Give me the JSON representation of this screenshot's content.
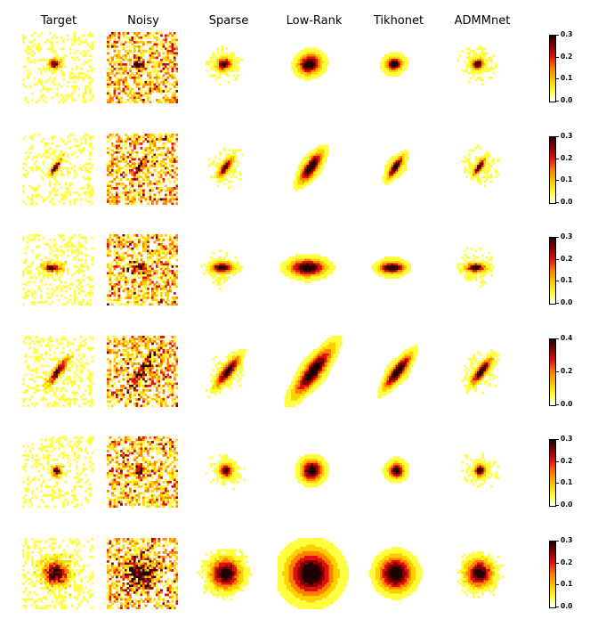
{
  "columns": [
    "Target",
    "Noisy",
    "Sparse",
    "Low-Rank",
    "Tikhonet",
    "ADMMnet"
  ],
  "colormap": {
    "name": "hot-reversed",
    "stops": [
      "#ffffff",
      "#ffff40",
      "#ffd000",
      "#ff8000",
      "#e01010",
      "#800000",
      "#200000"
    ]
  },
  "rows": [
    {
      "colorbar_ticks": [
        "0.0",
        "0.1",
        "0.2",
        "0.3"
      ]
    },
    {
      "colorbar_ticks": [
        "0.0",
        "0.1",
        "0.2",
        "0.3"
      ]
    },
    {
      "colorbar_ticks": [
        "0.0",
        "0.1",
        "0.2",
        "0.3"
      ]
    },
    {
      "colorbar_ticks": [
        "0.0",
        "0.2",
        "0.4"
      ]
    },
    {
      "colorbar_ticks": [
        "0.0",
        "0.1",
        "0.2",
        "0.3"
      ]
    },
    {
      "colorbar_ticks": [
        "0.0",
        "0.1",
        "0.2",
        "0.3"
      ]
    }
  ]
}
